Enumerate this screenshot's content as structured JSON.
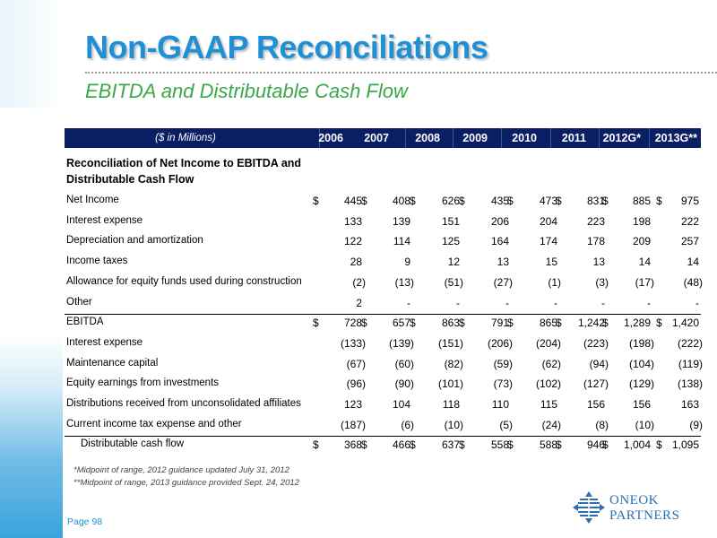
{
  "title": "Non-GAAP Reconciliations",
  "subtitle": "EBITDA and Distributable Cash Flow",
  "table": {
    "units_label": "($ in Millions)",
    "years": [
      "2006",
      "2007",
      "2008",
      "2009",
      "2010",
      "2011",
      "2012G*",
      "2013G**"
    ],
    "section_heading_line1": "Reconciliation of Net Income to EBITDA and",
    "section_heading_line2": "Distributable Cash Flow",
    "currency_symbol": "$",
    "rows": [
      {
        "label": "Net Income",
        "values": [
          "445",
          "408",
          "626",
          "435",
          "473",
          "831",
          "885",
          "975"
        ],
        "dollar": true,
        "rule": false,
        "indent": false
      },
      {
        "label": "Interest expense",
        "values": [
          "133",
          "139",
          "151",
          "206",
          "204",
          "223",
          "198",
          "222"
        ],
        "dollar": false,
        "rule": false,
        "indent": false
      },
      {
        "label": "Depreciation and amortization",
        "values": [
          "122",
          "114",
          "125",
          "164",
          "174",
          "178",
          "209",
          "257"
        ],
        "dollar": false,
        "rule": false,
        "indent": false
      },
      {
        "label": "Income taxes",
        "values": [
          "28",
          "9",
          "12",
          "13",
          "15",
          "13",
          "14",
          "14"
        ],
        "dollar": false,
        "rule": false,
        "indent": false
      },
      {
        "label": "Allowance for equity funds used during construction",
        "values": [
          "(2)",
          "(13)",
          "(51)",
          "(27)",
          "(1)",
          "(3)",
          "(17)",
          "(48)"
        ],
        "dollar": false,
        "rule": false,
        "indent": false
      },
      {
        "label": "Other",
        "values": [
          "2",
          "-",
          "-",
          "-",
          "-",
          "-",
          "-",
          "-"
        ],
        "dollar": false,
        "rule": false,
        "indent": false
      },
      {
        "label": "EBITDA",
        "values": [
          "728",
          "657",
          "863",
          "791",
          "865",
          "1,242",
          "1,289",
          "1,420"
        ],
        "dollar": true,
        "rule": true,
        "indent": false
      },
      {
        "label": "Interest expense",
        "values": [
          "(133)",
          "(139)",
          "(151)",
          "(206)",
          "(204)",
          "(223)",
          "(198)",
          "(222)"
        ],
        "dollar": false,
        "rule": false,
        "indent": false
      },
      {
        "label": "Maintenance capital",
        "values": [
          "(67)",
          "(60)",
          "(82)",
          "(59)",
          "(62)",
          "(94)",
          "(104)",
          "(119)"
        ],
        "dollar": false,
        "rule": false,
        "indent": false
      },
      {
        "label": "Equity earnings from investments",
        "values": [
          "(96)",
          "(90)",
          "(101)",
          "(73)",
          "(102)",
          "(127)",
          "(129)",
          "(138)"
        ],
        "dollar": false,
        "rule": false,
        "indent": false
      },
      {
        "label": "Distributions received from unconsolidated affiliates",
        "values": [
          "123",
          "104",
          "118",
          "110",
          "115",
          "156",
          "156",
          "163"
        ],
        "dollar": false,
        "rule": false,
        "indent": false
      },
      {
        "label": "Current income tax expense and other",
        "values": [
          "(187)",
          "(6)",
          "(10)",
          "(5)",
          "(24)",
          "(8)",
          "(10)",
          "(9)"
        ],
        "dollar": false,
        "rule": false,
        "indent": false
      },
      {
        "label": "Distributable cash flow",
        "values": [
          "368",
          "466",
          "637",
          "558",
          "588",
          "946",
          "1,004",
          "1,095"
        ],
        "dollar": true,
        "rule": true,
        "indent": true
      }
    ]
  },
  "footnotes": [
    "*Midpoint of range, 2012 guidance updated July 31, 2012",
    "**Midpoint of range, 2013 guidance provided Sept. 24, 2012"
  ],
  "page_label": "Page 98",
  "logo": {
    "line1": "ONEOK",
    "line2": "PARTNERS",
    "color": "#2b6fb5"
  },
  "colors": {
    "title": "#1f8fd6",
    "subtitle": "#3aa84a",
    "header_bg": "#0a1f63"
  }
}
